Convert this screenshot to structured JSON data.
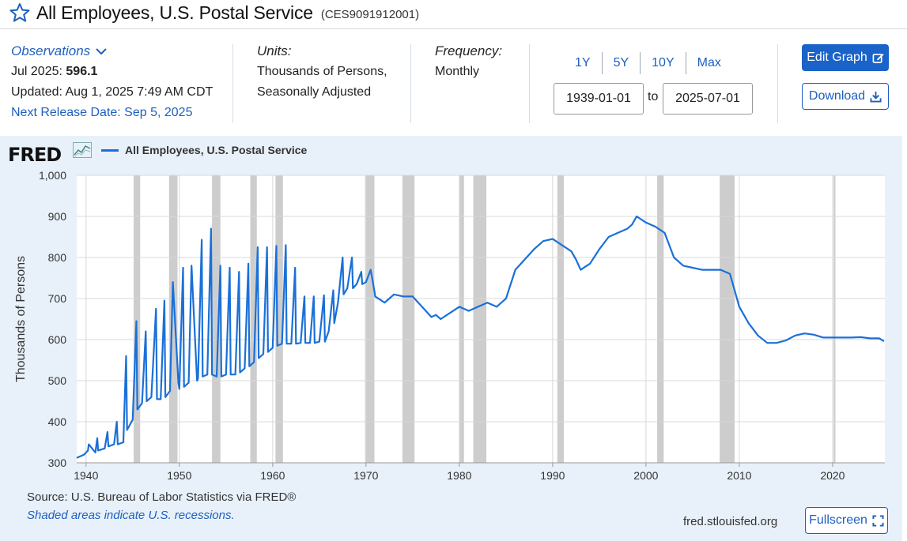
{
  "header": {
    "title": "All Employees, U.S. Postal Service",
    "series_id": "(CES9091912001)"
  },
  "observations": {
    "link_label": "Observations",
    "latest_label": "Jul 2025:",
    "latest_value": "596.1",
    "updated": "Updated: Aug 1, 2025 7:49 AM CDT",
    "next_release": "Next Release Date: Sep 5, 2025"
  },
  "units": {
    "label": "Units:",
    "line1": "Thousands of Persons,",
    "line2": "Seasonally Adjusted"
  },
  "frequency": {
    "label": "Frequency:",
    "value": "Monthly"
  },
  "range": {
    "buttons": [
      "1Y",
      "5Y",
      "10Y",
      "Max"
    ],
    "start": "1939-01-01",
    "to_label": "to",
    "end": "2025-07-01"
  },
  "buttons": {
    "edit": "Edit Graph",
    "download": "Download",
    "fullscreen": "Fullscreen"
  },
  "chart": {
    "logo": "FRED",
    "source": "Source: U.S. Bureau of Labor Statistics via FRED®",
    "recession_note": "Shaded areas indicate U.S. recessions.",
    "site": "fred.stlouisfed.org"
  },
  "colors": {
    "line": "#1a70d8",
    "recession": "#c8c8c8",
    "panel": "#e8f1fa",
    "accent": "#1d5fbf"
  },
  "icons": {
    "favorite": "star-icon",
    "observations": "chevron-down-icon",
    "edit": "edit-icon",
    "download": "download-icon",
    "fullscreen": "fullscreen-icon",
    "legend": "chart-icon"
  },
  "chart_data": {
    "type": "line",
    "title": "",
    "xlabel": "",
    "ylabel": "Thousands of Persons",
    "xlim": [
      1939,
      2025.6
    ],
    "ylim": [
      300,
      1000
    ],
    "y_ticks": [
      300,
      400,
      500,
      600,
      700,
      800,
      900,
      1000
    ],
    "y_tick_labels": [
      "300",
      "400",
      "500",
      "600",
      "700",
      "800",
      "900",
      "1,000"
    ],
    "x_ticks": [
      1940,
      1950,
      1960,
      1970,
      1980,
      1990,
      2000,
      2010,
      2020
    ],
    "grid": true,
    "legend": "top-left",
    "recessions": [
      [
        1945.1,
        1945.8
      ],
      [
        1948.9,
        1949.8
      ],
      [
        1953.5,
        1954.4
      ],
      [
        1957.6,
        1958.3
      ],
      [
        1960.3,
        1961.1
      ],
      [
        1969.9,
        1970.9
      ],
      [
        1973.9,
        1975.2
      ],
      [
        1980.0,
        1980.5
      ],
      [
        1981.5,
        1982.9
      ],
      [
        1990.5,
        1991.2
      ],
      [
        2001.2,
        2001.9
      ],
      [
        2007.9,
        2009.5
      ],
      [
        2020.1,
        2020.3
      ]
    ],
    "series": [
      {
        "name": "All Employees, U.S. Postal Service",
        "x": [
          1939,
          1939.8,
          1940.2,
          1940.3,
          1941,
          1941.2,
          1941.3,
          1942,
          1942.3,
          1942.4,
          1943,
          1943.3,
          1943.4,
          1944,
          1944.3,
          1944.4,
          1945,
          1945.4,
          1945.5,
          1946,
          1946.4,
          1946.5,
          1947,
          1947.5,
          1947.6,
          1948,
          1948.4,
          1948.5,
          1949,
          1949.3,
          1949.9,
          1950,
          1950.4,
          1950.5,
          1951,
          1951.3,
          1951.9,
          1952,
          1952.4,
          1952.5,
          1953,
          1953.4,
          1953.5,
          1954,
          1954.4,
          1954.5,
          1955,
          1955.4,
          1955.5,
          1956,
          1956.4,
          1956.5,
          1957,
          1957.4,
          1957.5,
          1958,
          1958.4,
          1958.5,
          1959,
          1959.4,
          1959.5,
          1960,
          1960.4,
          1960.5,
          1961,
          1961.4,
          1961.5,
          1962,
          1962.4,
          1962.5,
          1963,
          1963.4,
          1963.5,
          1964,
          1964.4,
          1964.5,
          1965,
          1965.5,
          1965.6,
          1966,
          1966.5,
          1966.6,
          1967,
          1967.5,
          1967.6,
          1968,
          1968.5,
          1968.6,
          1969,
          1969.5,
          1969.6,
          1970,
          1970.5,
          1970.7,
          1971,
          1972,
          1972.5,
          1973,
          1974,
          1975,
          1976,
          1977,
          1977.5,
          1978,
          1979,
          1980,
          1981,
          1982,
          1983,
          1984,
          1985,
          1986,
          1987,
          1988,
          1989,
          1990,
          1991,
          1992,
          1992.5,
          1993,
          1994,
          1995,
          1996,
          1997,
          1998,
          1998.5,
          1999,
          2000,
          2001,
          2002,
          2003,
          2004,
          2005,
          2006,
          2007,
          2008,
          2009,
          2010,
          2011,
          2012,
          2013,
          2014,
          2015,
          2016,
          2017,
          2018,
          2019,
          2020,
          2021,
          2022,
          2023,
          2024,
          2025,
          2025.5
        ],
        "values": [
          312,
          320,
          330,
          345,
          325,
          360,
          330,
          335,
          375,
          340,
          345,
          400,
          345,
          350,
          560,
          380,
          405,
          645,
          430,
          445,
          620,
          450,
          460,
          675,
          455,
          455,
          695,
          460,
          475,
          740,
          495,
          480,
          775,
          485,
          495,
          780,
          500,
          505,
          843,
          510,
          515,
          870,
          515,
          510,
          780,
          510,
          515,
          775,
          515,
          515,
          765,
          520,
          530,
          785,
          535,
          545,
          825,
          555,
          565,
          825,
          570,
          580,
          828,
          585,
          590,
          830,
          590,
          590,
          775,
          590,
          592,
          705,
          592,
          592,
          705,
          592,
          595,
          708,
          595,
          620,
          720,
          640,
          690,
          800,
          710,
          725,
          800,
          725,
          735,
          765,
          735,
          740,
          770,
          745,
          705,
          690,
          700,
          710,
          705,
          705,
          680,
          655,
          660,
          650,
          665,
          680,
          670,
          680,
          690,
          680,
          700,
          770,
          795,
          820,
          840,
          845,
          830,
          815,
          795,
          770,
          785,
          820,
          850,
          860,
          870,
          880,
          900,
          885,
          875,
          860,
          800,
          780,
          775,
          770,
          770,
          770,
          760,
          680,
          640,
          610,
          592,
          592,
          598,
          610,
          615,
          612,
          605,
          605,
          605,
          605,
          606,
          603,
          603,
          596
        ]
      }
    ]
  }
}
